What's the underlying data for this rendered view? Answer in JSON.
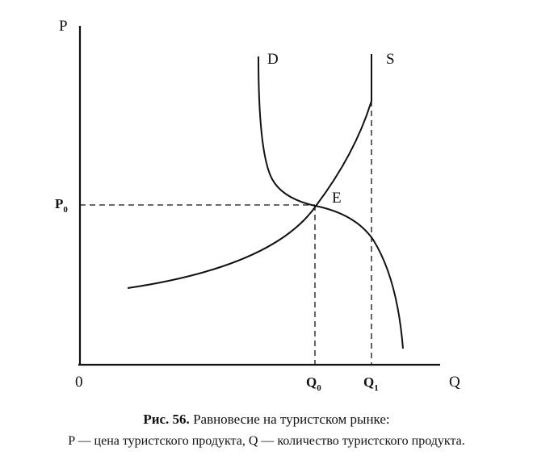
{
  "diagram": {
    "axis_y_label": "P",
    "axis_x_label": "Q",
    "origin_label": "0",
    "demand_label": "D",
    "supply_label": "S",
    "equilibrium_label": "E",
    "price_tick": {
      "main": "P",
      "sub": "0"
    },
    "q0_tick": {
      "main": "Q",
      "sub": "0"
    },
    "q1_tick": {
      "main": "Q",
      "sub": "1"
    }
  },
  "caption": {
    "figure_number": "Рис. 56.",
    "figure_title": "Равновесие на туристском рынке:",
    "legend": "P — цена туристского продукта, Q — количество туристского продукта."
  }
}
